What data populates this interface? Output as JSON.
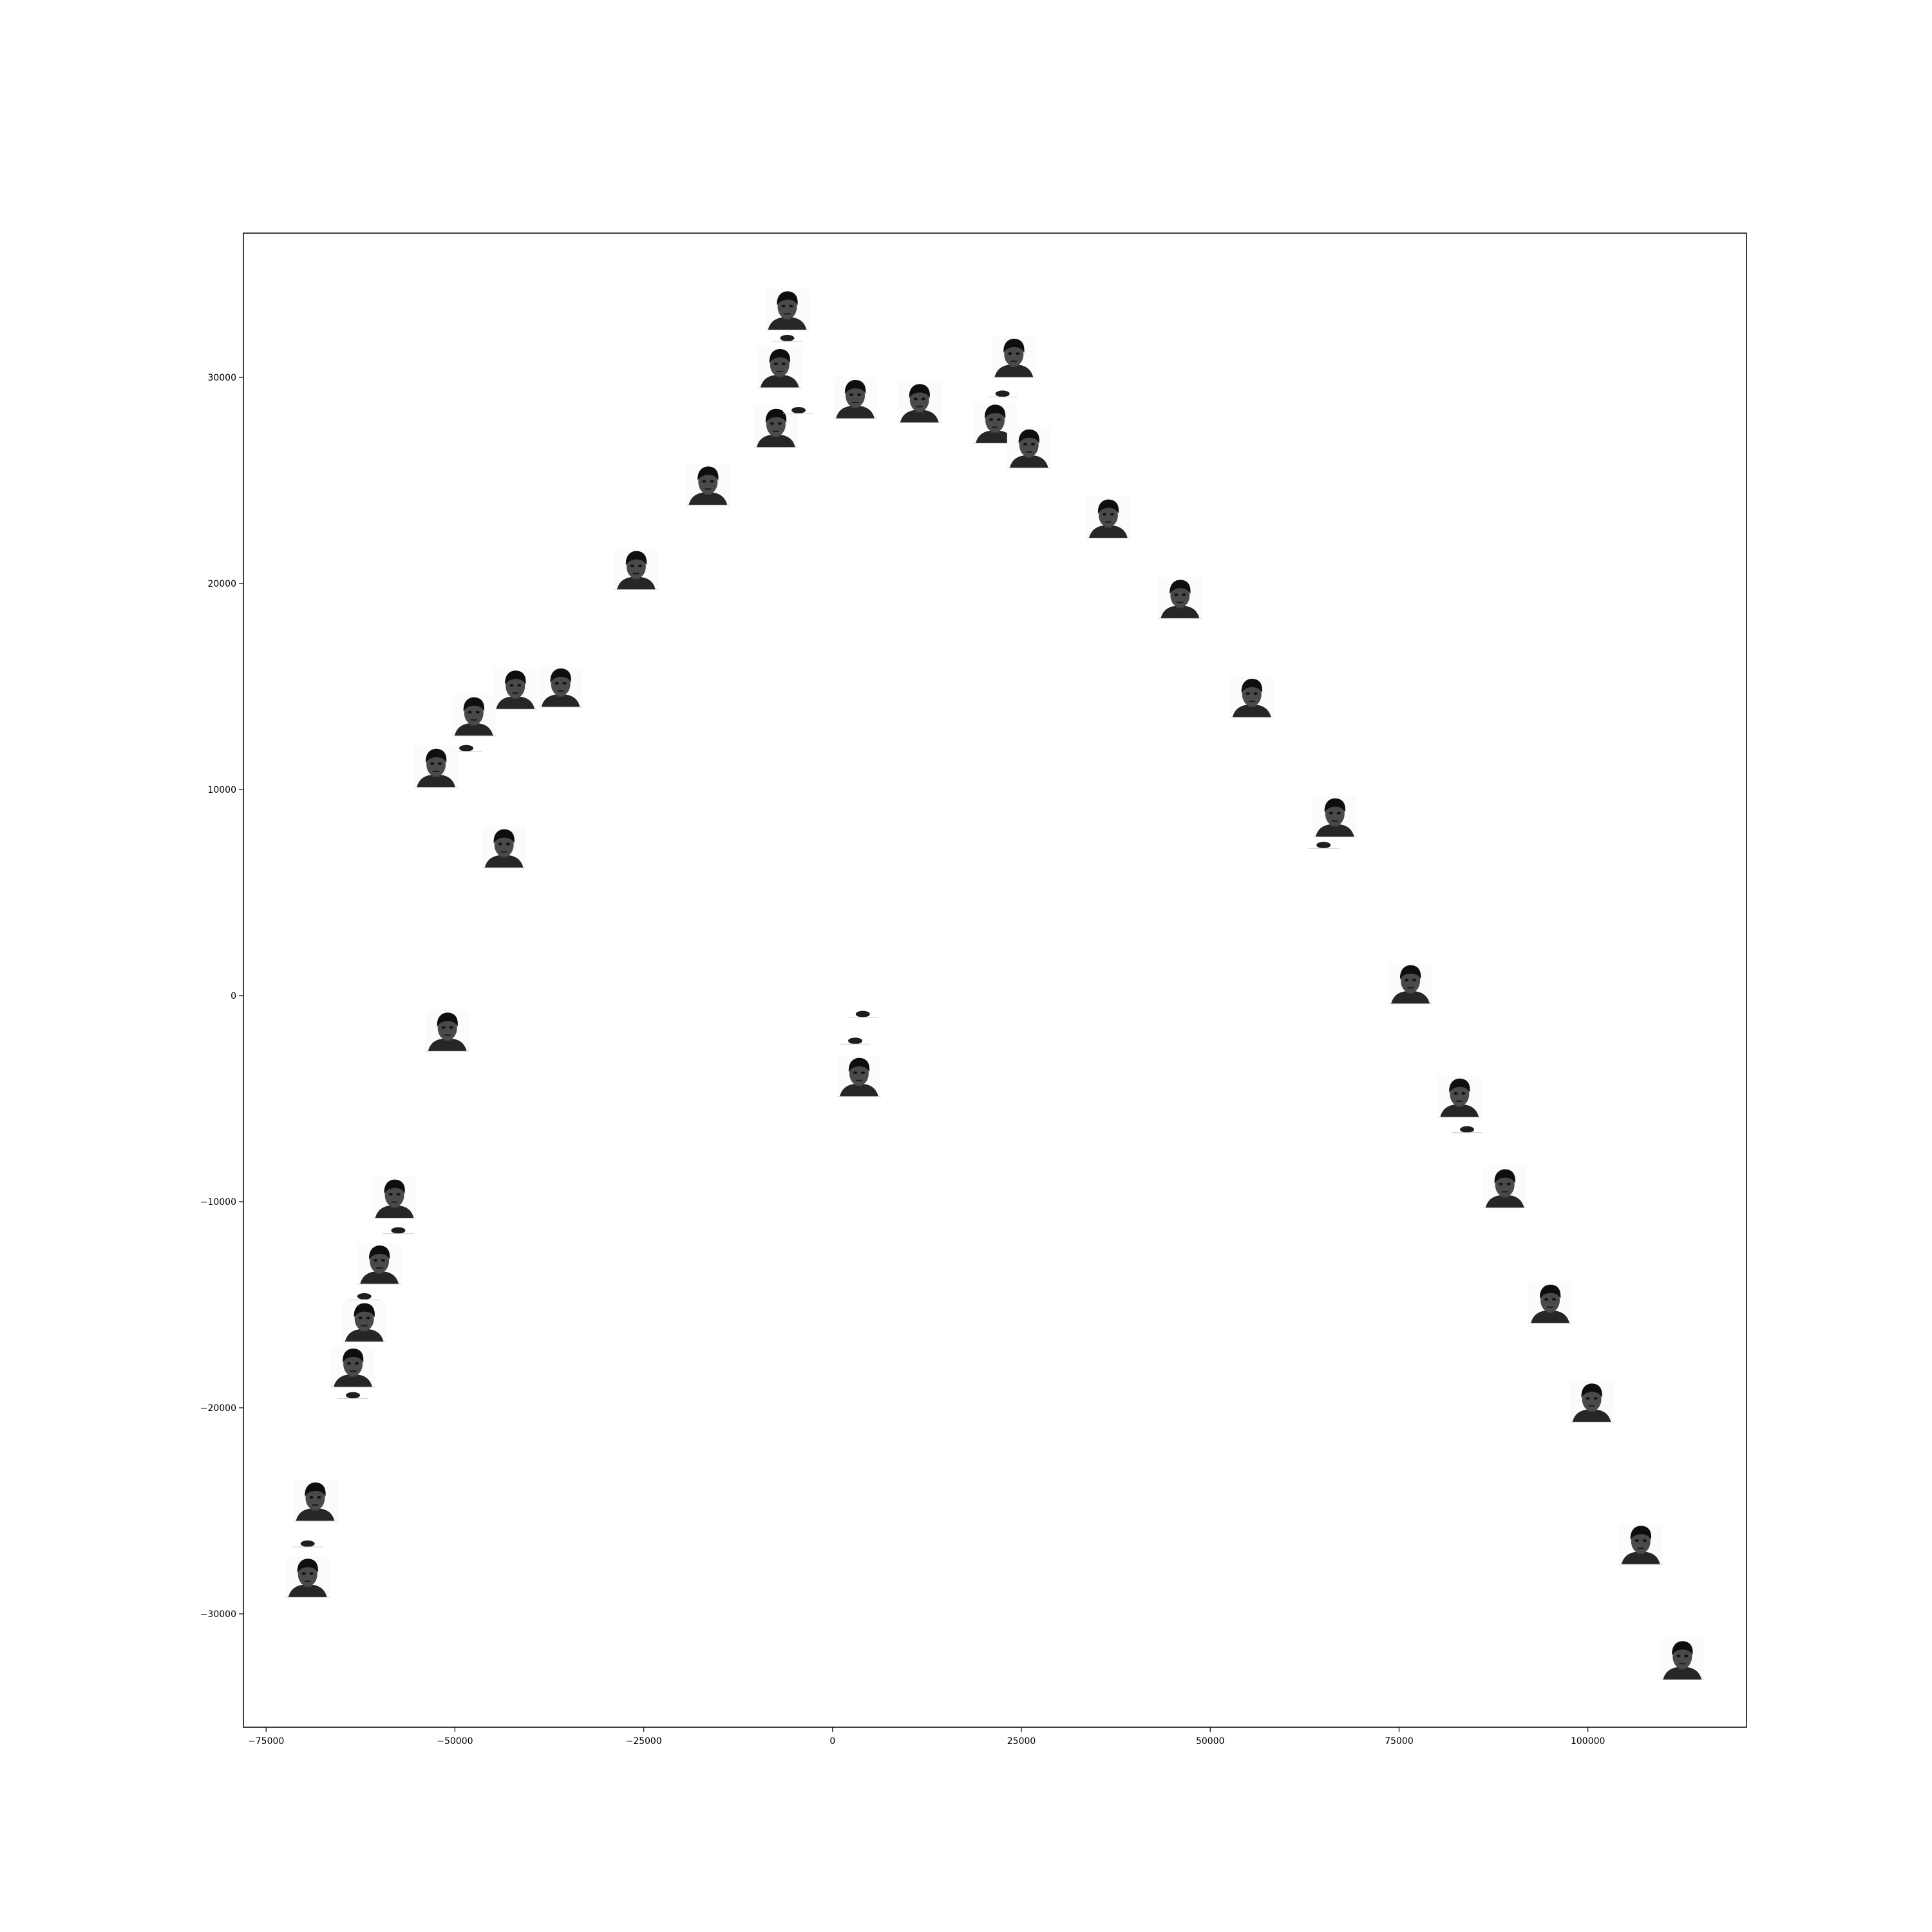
{
  "chart_data": {
    "type": "scatter",
    "title": "",
    "xlabel": "",
    "ylabel": "",
    "xlim": [
      -78000,
      121000
    ],
    "ylim": [
      -35500,
      37000
    ],
    "grid": false,
    "legend": "none",
    "xticks": [
      -75000,
      -50000,
      -25000,
      0,
      25000,
      50000,
      75000,
      100000
    ],
    "xtick_labels": [
      "−75000",
      "−50000",
      "−25000",
      "0",
      "25000",
      "50000",
      "75000",
      "100000"
    ],
    "yticks": [
      -30000,
      -20000,
      -10000,
      0,
      10000,
      20000,
      30000
    ],
    "ytick_labels": [
      "−30000",
      "−20000",
      "−10000",
      "0",
      "10000",
      "20000",
      "30000"
    ],
    "marker": "face-thumbnail",
    "points": [
      {
        "x": -6000,
        "y": 33300,
        "kind": "face"
      },
      {
        "x": -6000,
        "y": 32000,
        "kind": "partial"
      },
      {
        "x": -7000,
        "y": 30500,
        "kind": "face"
      },
      {
        "x": -7500,
        "y": 27600,
        "kind": "face"
      },
      {
        "x": -4500,
        "y": 28500,
        "kind": "partial"
      },
      {
        "x": 3000,
        "y": 29000,
        "kind": "face"
      },
      {
        "x": 11500,
        "y": 28800,
        "kind": "face"
      },
      {
        "x": 24000,
        "y": 31000,
        "kind": "face"
      },
      {
        "x": 22500,
        "y": 29300,
        "kind": "partial"
      },
      {
        "x": 21500,
        "y": 27800,
        "kind": "face"
      },
      {
        "x": 26000,
        "y": 26600,
        "kind": "face"
      },
      {
        "x": -16500,
        "y": 24800,
        "kind": "face"
      },
      {
        "x": -26000,
        "y": 20700,
        "kind": "face"
      },
      {
        "x": 36500,
        "y": 23200,
        "kind": "face"
      },
      {
        "x": 46000,
        "y": 19300,
        "kind": "face"
      },
      {
        "x": -42000,
        "y": 14900,
        "kind": "face"
      },
      {
        "x": -36000,
        "y": 15000,
        "kind": "face"
      },
      {
        "x": -47500,
        "y": 13600,
        "kind": "face"
      },
      {
        "x": -48500,
        "y": 12100,
        "kind": "partial"
      },
      {
        "x": -52500,
        "y": 11100,
        "kind": "face"
      },
      {
        "x": 55500,
        "y": 14500,
        "kind": "face"
      },
      {
        "x": 66500,
        "y": 8700,
        "kind": "face"
      },
      {
        "x": 65000,
        "y": 7400,
        "kind": "partial"
      },
      {
        "x": -43500,
        "y": 7200,
        "kind": "face"
      },
      {
        "x": 76500,
        "y": 600,
        "kind": "face"
      },
      {
        "x": -51000,
        "y": -1700,
        "kind": "face"
      },
      {
        "x": 4000,
        "y": -800,
        "kind": "partial"
      },
      {
        "x": 3000,
        "y": -2100,
        "kind": "partial"
      },
      {
        "x": 3500,
        "y": -3900,
        "kind": "face"
      },
      {
        "x": 83000,
        "y": -4900,
        "kind": "face"
      },
      {
        "x": 84000,
        "y": -6400,
        "kind": "partial"
      },
      {
        "x": 89000,
        "y": -9300,
        "kind": "face"
      },
      {
        "x": -58000,
        "y": -9800,
        "kind": "face"
      },
      {
        "x": -57500,
        "y": -11300,
        "kind": "partial"
      },
      {
        "x": -60000,
        "y": -13000,
        "kind": "face"
      },
      {
        "x": -62000,
        "y": -14500,
        "kind": "partial"
      },
      {
        "x": -62000,
        "y": -15800,
        "kind": "face"
      },
      {
        "x": 95000,
        "y": -14900,
        "kind": "face"
      },
      {
        "x": -63500,
        "y": -18000,
        "kind": "face"
      },
      {
        "x": -63500,
        "y": -19300,
        "kind": "partial"
      },
      {
        "x": 100500,
        "y": -19700,
        "kind": "face"
      },
      {
        "x": -68500,
        "y": -24500,
        "kind": "face"
      },
      {
        "x": -69500,
        "y": -26500,
        "kind": "partial"
      },
      {
        "x": -69500,
        "y": -28200,
        "kind": "face"
      },
      {
        "x": 107000,
        "y": -26600,
        "kind": "face"
      },
      {
        "x": 112500,
        "y": -32200,
        "kind": "face"
      }
    ]
  }
}
